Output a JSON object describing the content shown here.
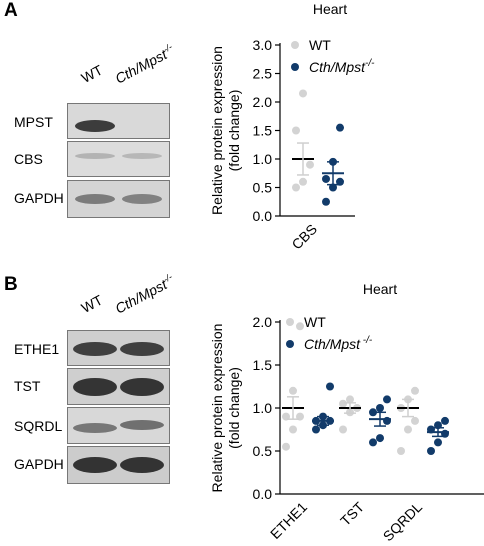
{
  "panelA": {
    "letter": "A",
    "lanes": [
      "WT",
      "Cth/Mpst"
    ],
    "lane_superscript": "-/-",
    "blot_rows": [
      {
        "label": "MPST",
        "bands": [
          0.9,
          0.0
        ]
      },
      {
        "label": "CBS",
        "bands": [
          0.15,
          0.12
        ]
      },
      {
        "label": "GAPDH",
        "bands": [
          0.55,
          0.5
        ]
      }
    ],
    "chart": {
      "title": "Heart",
      "ylabel_line1": "Relative protein expression",
      "ylabel_line2": "(fold change)",
      "legend": [
        {
          "name": "WT",
          "superscript": "",
          "color": "#d3d3d3"
        },
        {
          "name": "Cth/Mpst",
          "superscript": "-/-",
          "color": "#123b6a"
        }
      ]
    }
  },
  "panelB": {
    "letter": "B",
    "lanes": [
      "WT",
      "Cth/Mpst"
    ],
    "lane_superscript": "-/-",
    "blot_rows": [
      {
        "label": "ETHE1",
        "bands": [
          0.85,
          0.85
        ]
      },
      {
        "label": "TST",
        "bands": [
          0.9,
          0.9
        ]
      },
      {
        "label": "SQRDL",
        "bands": [
          0.55,
          0.6
        ]
      },
      {
        "label": "GAPDH",
        "bands": [
          0.9,
          0.9
        ]
      }
    ],
    "chart": {
      "title": "Heart",
      "ylabel_line1": "Relative protein expression",
      "ylabel_line2": "(fold change)",
      "legend": [
        {
          "name": "WT",
          "superscript": "",
          "color": "#d3d3d3"
        },
        {
          "name": "Cth/Mpst",
          "superscript": " -/-",
          "color": "#123b6a"
        }
      ]
    }
  },
  "chart_data": [
    {
      "type": "scatter",
      "title": "Heart",
      "ylabel": "Relative protein expression (fold change)",
      "ylim": [
        0,
        3.0
      ],
      "yticks": [
        0.0,
        0.5,
        1.0,
        1.5,
        2.0,
        2.5,
        3.0
      ],
      "categories": [
        "CBS"
      ],
      "series": [
        {
          "name": "WT",
          "color": "#d3d3d3",
          "points": [
            [
              0.5,
              0.6,
              0.9,
              1.5,
              2.15
            ]
          ],
          "mean": [
            1.0
          ],
          "sem": [
            0.28
          ]
        },
        {
          "name": "Cth/Mpst -/-",
          "color": "#123b6a",
          "points": [
            [
              0.25,
              0.5,
              0.6,
              0.65,
              0.95,
              1.55
            ]
          ],
          "mean": [
            0.75
          ],
          "sem": [
            0.2
          ]
        }
      ]
    },
    {
      "type": "scatter",
      "title": "Heart",
      "ylabel": "Relative protein expression (fold change)",
      "ylim": [
        0,
        2.0
      ],
      "yticks": [
        0.0,
        0.5,
        1.0,
        1.5,
        2.0
      ],
      "categories": [
        "ETHE1",
        "TST",
        "SQRDL"
      ],
      "series": [
        {
          "name": "WT",
          "color": "#d3d3d3",
          "points": [
            [
              0.55,
              0.75,
              0.9,
              0.9,
              1.2,
              1.95
            ],
            [
              0.75,
              0.95,
              1.0,
              1.05,
              1.1
            ],
            [
              0.5,
              0.75,
              0.85,
              1.0,
              1.1,
              1.2
            ]
          ],
          "mean": [
            1.0,
            1.0,
            1.0
          ],
          "sem": [
            0.13,
            0.06,
            0.1
          ]
        },
        {
          "name": "Cth/Mpst -/-",
          "color": "#123b6a",
          "points": [
            [
              0.75,
              0.8,
              0.85,
              0.85,
              0.9,
              1.25
            ],
            [
              0.6,
              0.65,
              0.85,
              0.95,
              1.0,
              1.1
            ],
            [
              0.5,
              0.6,
              0.7,
              0.75,
              0.8,
              0.85
            ]
          ],
          "mean": [
            0.85,
            0.87,
            0.72
          ],
          "sem": [
            0.05,
            0.08,
            0.05
          ]
        }
      ]
    }
  ]
}
